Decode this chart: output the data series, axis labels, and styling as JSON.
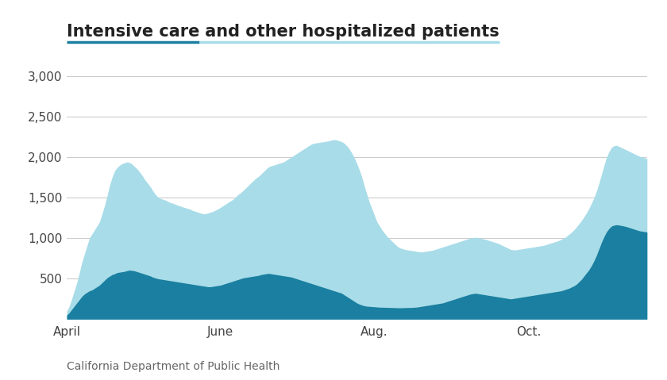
{
  "title_part1": "Intensive care",
  "title_part2": " and other hospitalized patients",
  "title_underline_icu_color": "#1a7fa0",
  "title_underline_hosp_color": "#a8dce8",
  "source": "California Department of Public Health",
  "icu_color": "#1a7fa0",
  "hosp_color": "#a8dce8",
  "background_color": "#ffffff",
  "ylim": [
    0,
    3000
  ],
  "yticks": [
    0,
    500,
    1000,
    1500,
    2000,
    2500,
    3000
  ],
  "xtick_labels": [
    "April",
    "June",
    "Aug.",
    "Oct."
  ],
  "grid_color": "#cccccc",
  "month_tick_days": [
    0,
    61,
    122,
    183
  ],
  "title_fontsize": 15,
  "source_fontsize": 10,
  "tick_fontsize": 11,
  "icu_values": [
    50,
    80,
    120,
    160,
    200,
    240,
    280,
    310,
    330,
    350,
    360,
    380,
    400,
    420,
    450,
    480,
    510,
    530,
    550,
    560,
    575,
    580,
    585,
    590,
    600,
    605,
    600,
    595,
    585,
    575,
    565,
    555,
    545,
    535,
    520,
    510,
    500,
    495,
    490,
    485,
    480,
    475,
    470,
    465,
    460,
    455,
    450,
    445,
    440,
    435,
    430,
    425,
    420,
    415,
    410,
    405,
    400,
    400,
    405,
    410,
    415,
    420,
    430,
    440,
    450,
    460,
    470,
    480,
    490,
    500,
    510,
    515,
    520,
    525,
    530,
    535,
    540,
    550,
    555,
    560,
    565,
    560,
    555,
    550,
    545,
    540,
    535,
    530,
    525,
    520,
    510,
    500,
    490,
    480,
    470,
    460,
    450,
    440,
    430,
    420,
    410,
    400,
    390,
    380,
    370,
    360,
    350,
    340,
    330,
    320,
    300,
    280,
    260,
    240,
    220,
    200,
    185,
    175,
    165,
    160,
    158,
    155,
    153,
    150,
    148,
    147,
    146,
    145,
    144,
    143,
    142,
    141,
    140,
    141,
    142,
    143,
    144,
    145,
    147,
    150,
    155,
    160,
    165,
    170,
    175,
    180,
    185,
    190,
    195,
    200,
    210,
    220,
    230,
    240,
    250,
    260,
    270,
    280,
    290,
    300,
    310,
    315,
    320,
    315,
    310,
    305,
    300,
    295,
    290,
    285,
    280,
    275,
    270,
    265,
    260,
    255,
    250,
    255,
    260,
    265,
    270,
    275,
    280,
    285,
    290,
    295,
    300,
    305,
    310,
    315,
    320,
    325,
    330,
    335,
    340,
    345,
    350,
    360,
    370,
    380,
    395,
    410,
    430,
    460,
    490,
    530,
    570,
    610,
    660,
    720,
    790,
    870,
    950,
    1020,
    1080,
    1120,
    1150,
    1160,
    1165,
    1160,
    1155,
    1148,
    1140,
    1130,
    1120,
    1110,
    1100,
    1090,
    1085,
    1080,
    1075
  ],
  "total_values": [
    100,
    160,
    250,
    350,
    450,
    570,
    700,
    800,
    900,
    1000,
    1050,
    1100,
    1150,
    1200,
    1300,
    1400,
    1520,
    1650,
    1750,
    1830,
    1870,
    1900,
    1920,
    1930,
    1940,
    1930,
    1910,
    1880,
    1850,
    1810,
    1770,
    1720,
    1680,
    1640,
    1590,
    1545,
    1510,
    1490,
    1480,
    1470,
    1455,
    1440,
    1430,
    1420,
    1405,
    1395,
    1385,
    1375,
    1365,
    1355,
    1340,
    1330,
    1320,
    1310,
    1300,
    1300,
    1310,
    1320,
    1330,
    1345,
    1360,
    1380,
    1400,
    1420,
    1440,
    1460,
    1480,
    1510,
    1540,
    1560,
    1590,
    1620,
    1650,
    1680,
    1710,
    1740,
    1760,
    1790,
    1820,
    1850,
    1880,
    1890,
    1900,
    1910,
    1920,
    1930,
    1940,
    1960,
    1980,
    2000,
    2020,
    2040,
    2060,
    2080,
    2100,
    2120,
    2140,
    2160,
    2170,
    2175,
    2180,
    2185,
    2190,
    2195,
    2200,
    2210,
    2215,
    2210,
    2200,
    2190,
    2170,
    2140,
    2100,
    2050,
    1990,
    1920,
    1840,
    1750,
    1640,
    1540,
    1440,
    1360,
    1280,
    1200,
    1150,
    1100,
    1060,
    1020,
    990,
    960,
    930,
    900,
    880,
    870,
    860,
    855,
    850,
    845,
    840,
    835,
    830,
    830,
    835,
    840,
    845,
    850,
    860,
    870,
    880,
    890,
    900,
    910,
    920,
    930,
    940,
    950,
    960,
    970,
    980,
    990,
    1000,
    1005,
    1010,
    1005,
    1000,
    990,
    985,
    975,
    965,
    955,
    945,
    935,
    920,
    905,
    890,
    875,
    860,
    855,
    855,
    860,
    865,
    870,
    875,
    880,
    885,
    890,
    895,
    900,
    905,
    910,
    920,
    930,
    940,
    950,
    960,
    970,
    985,
    1000,
    1020,
    1045,
    1070,
    1100,
    1135,
    1175,
    1215,
    1260,
    1310,
    1365,
    1430,
    1500,
    1580,
    1680,
    1790,
    1900,
    2000,
    2070,
    2120,
    2140,
    2145,
    2130,
    2115,
    2100,
    2085,
    2070,
    2055,
    2040,
    2025,
    2010,
    2000,
    1990,
    1980
  ]
}
